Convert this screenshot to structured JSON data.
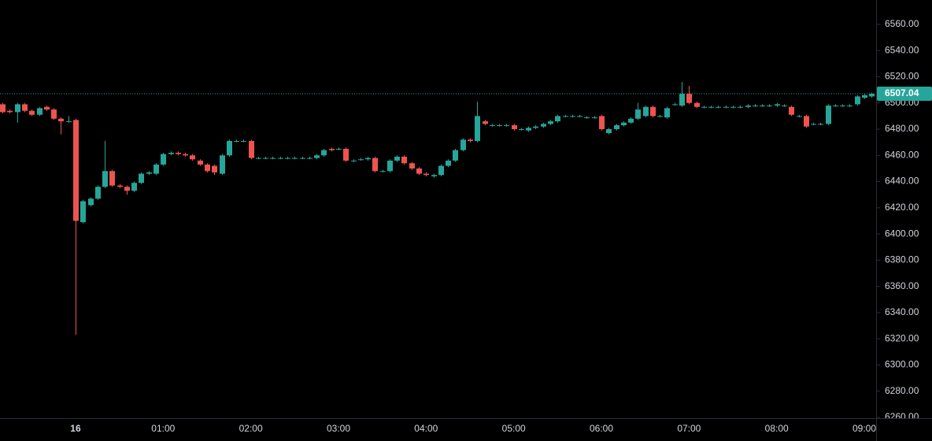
{
  "chart_data": {
    "type": "candlestick",
    "categories": [
      null,
      null,
      null,
      null,
      null,
      null,
      null,
      null,
      null,
      null,
      "16",
      null,
      null,
      null,
      null,
      null,
      null,
      null,
      null,
      null,
      null,
      null,
      "01:00",
      null,
      null,
      null,
      null,
      null,
      null,
      null,
      null,
      null,
      null,
      null,
      "02:00",
      null,
      null,
      null,
      null,
      null,
      null,
      null,
      null,
      null,
      null,
      null,
      "03:00",
      null,
      null,
      null,
      null,
      null,
      null,
      null,
      null,
      null,
      null,
      null,
      "04:00",
      null,
      null,
      null,
      null,
      null,
      null,
      null,
      null,
      null,
      null,
      null,
      "05:00",
      null,
      null,
      null,
      null,
      null,
      null,
      null,
      null,
      null,
      null,
      null,
      "06:00",
      null,
      null,
      null,
      null,
      null,
      null,
      null,
      null,
      null,
      null,
      null,
      "07:00",
      null,
      null,
      null,
      null,
      null,
      null,
      null,
      null,
      null,
      null,
      null,
      "08:00",
      null,
      null,
      null,
      null,
      null,
      null,
      null,
      null,
      null,
      null,
      null,
      "09:00",
      null
    ],
    "open": [
      6499,
      6494,
      6493,
      6499,
      6494,
      6491,
      6497,
      6495,
      6488,
      6486,
      6487,
      6409,
      6422,
      6427,
      6436,
      6448,
      6437,
      6436,
      6433,
      6439,
      6446,
      6446,
      6453,
      6461,
      6462,
      6461,
      6460,
      6456,
      6453,
      6452,
      6446,
      6460,
      6471,
      6471,
      6471,
      6458,
      6458,
      6458,
      6458,
      6458,
      6458,
      6458,
      6458,
      6458,
      6460,
      6465,
      6465,
      6465,
      6456,
      6457,
      6457,
      6458,
      6448,
      6448,
      6456,
      6459,
      6454,
      6450,
      6446,
      6444,
      6445,
      6452,
      6456,
      6464,
      6472,
      6471,
      6486,
      6483,
      6483,
      6483,
      6483,
      6480,
      6479,
      6481,
      6482,
      6484,
      6486,
      6490,
      6490,
      6490,
      6489,
      6489,
      6490,
      6477,
      6480,
      6483,
      6485,
      6488,
      6490,
      6497,
      6490,
      6489,
      6499,
      6498,
      6507,
      6500,
      6497,
      6497,
      6497,
      6497,
      6497,
      6497,
      6497,
      6498,
      6498,
      6498,
      6498,
      6498,
      6497,
      6490,
      6490,
      6484,
      6484,
      6484,
      6498,
      6498,
      6498,
      6499,
      6504,
      6505
    ],
    "high": [
      6500,
      6495,
      6500,
      6500,
      6495,
      6497,
      6498,
      6496,
      6489,
      6490,
      6488,
      6426,
      6428,
      6437,
      6471,
      6449,
      6438,
      6437,
      6440,
      6447,
      6448,
      6454,
      6462,
      6463,
      6463,
      6462,
      6461,
      6457,
      6454,
      6453,
      6461,
      6472,
      6472,
      6472,
      6472,
      6459,
      6459,
      6459,
      6459,
      6459,
      6459,
      6459,
      6459,
      6461,
      6465,
      6466,
      6466,
      6466,
      6457,
      6458,
      6459,
      6459,
      6449,
      6457,
      6460,
      6460,
      6455,
      6451,
      6447,
      6446,
      6453,
      6457,
      6465,
      6473,
      6473,
      6501,
      6487,
      6484,
      6484,
      6484,
      6484,
      6481,
      6482,
      6483,
      6485,
      6487,
      6491,
      6491,
      6491,
      6491,
      6490,
      6490,
      6491,
      6481,
      6484,
      6486,
      6489,
      6500,
      6498,
      6498,
      6491,
      6497,
      6500,
      6516,
      6513,
      6501,
      6498,
      6498,
      6498,
      6498,
      6498,
      6498,
      6499,
      6499,
      6499,
      6499,
      6500,
      6499,
      6498,
      6491,
      6491,
      6485,
      6485,
      6499,
      6499,
      6499,
      6499,
      6506,
      6507,
      6508
    ],
    "low": [
      6492,
      6492,
      6485,
      6493,
      6490,
      6490,
      6494,
      6487,
      6476,
      6485,
      6323,
      6408,
      6421,
      6426,
      6435,
      6436,
      6435,
      6430,
      6432,
      6438,
      6445,
      6445,
      6452,
      6460,
      6460,
      6459,
      6456,
      6452,
      6447,
      6445,
      6445,
      6459,
      6470,
      6470,
      6457,
      6457,
      6457,
      6457,
      6457,
      6457,
      6457,
      6457,
      6457,
      6457,
      6459,
      6463,
      6464,
      6455,
      6455,
      6456,
      6456,
      6447,
      6447,
      6447,
      6455,
      6453,
      6449,
      6445,
      6444,
      6443,
      6444,
      6451,
      6455,
      6463,
      6470,
      6470,
      6483,
      6482,
      6482,
      6482,
      6479,
      6479,
      6478,
      6480,
      6481,
      6483,
      6485,
      6489,
      6489,
      6489,
      6488,
      6488,
      6479,
      6476,
      6479,
      6482,
      6484,
      6487,
      6489,
      6489,
      6489,
      6488,
      6498,
      6497,
      6499,
      6496,
      6496,
      6496,
      6496,
      6496,
      6496,
      6496,
      6496,
      6497,
      6497,
      6497,
      6497,
      6497,
      6490,
      6489,
      6481,
      6483,
      6483,
      6483,
      6497,
      6497,
      6497,
      6498,
      6503,
      6504
    ],
    "close": [
      6493,
      6493,
      6499,
      6494,
      6491,
      6496,
      6495,
      6488,
      6486,
      6486,
      6410,
      6425,
      6427,
      6436,
      6448,
      6437,
      6436,
      6433,
      6439,
      6446,
      6447,
      6453,
      6461,
      6462,
      6461,
      6460,
      6457,
      6453,
      6448,
      6447,
      6460,
      6471,
      6471,
      6471,
      6458,
      6458,
      6458,
      6458,
      6458,
      6458,
      6458,
      6458,
      6458,
      6460,
      6464,
      6464,
      6465,
      6456,
      6456,
      6457,
      6458,
      6448,
      6448,
      6456,
      6459,
      6454,
      6450,
      6446,
      6445,
      6445,
      6452,
      6456,
      6464,
      6472,
      6471,
      6490,
      6484,
      6483,
      6483,
      6483,
      6480,
      6480,
      6481,
      6482,
      6484,
      6486,
      6490,
      6490,
      6490,
      6490,
      6489,
      6489,
      6480,
      6480,
      6483,
      6485,
      6488,
      6495,
      6497,
      6490,
      6490,
      6496,
      6499,
      6507,
      6500,
      6497,
      6497,
      6497,
      6497,
      6497,
      6497,
      6497,
      6498,
      6498,
      6498,
      6498,
      6499,
      6498,
      6491,
      6490,
      6482,
      6484,
      6484,
      6498,
      6498,
      6498,
      6498,
      6505,
      6506,
      6507.04
    ],
    "up_color": "#26a69a",
    "down_color": "#ef5350",
    "ylim": [
      6259.4,
      6578.6
    ],
    "yticks": [
      {
        "value": 6260,
        "label": "6260.00"
      },
      {
        "value": 6280,
        "label": "6280.00"
      },
      {
        "value": 6300,
        "label": "6300.00"
      },
      {
        "value": 6320,
        "label": "6320.00"
      },
      {
        "value": 6340,
        "label": "6340.00"
      },
      {
        "value": 6360,
        "label": "6360.00"
      },
      {
        "value": 6380,
        "label": "6380.00"
      },
      {
        "value": 6400,
        "label": "6400.00"
      },
      {
        "value": 6420,
        "label": "6420.00"
      },
      {
        "value": 6440,
        "label": "6440.00"
      },
      {
        "value": 6460,
        "label": "6460.00"
      },
      {
        "value": 6480,
        "label": "6480.00"
      },
      {
        "value": 6500,
        "label": "6500.00"
      },
      {
        "value": 6520,
        "label": "6520.00"
      },
      {
        "value": 6540,
        "label": "6540.00"
      },
      {
        "value": 6560,
        "label": "6560.00"
      }
    ],
    "last_price": 6507.04,
    "last_price_color": "#26a69a"
  }
}
